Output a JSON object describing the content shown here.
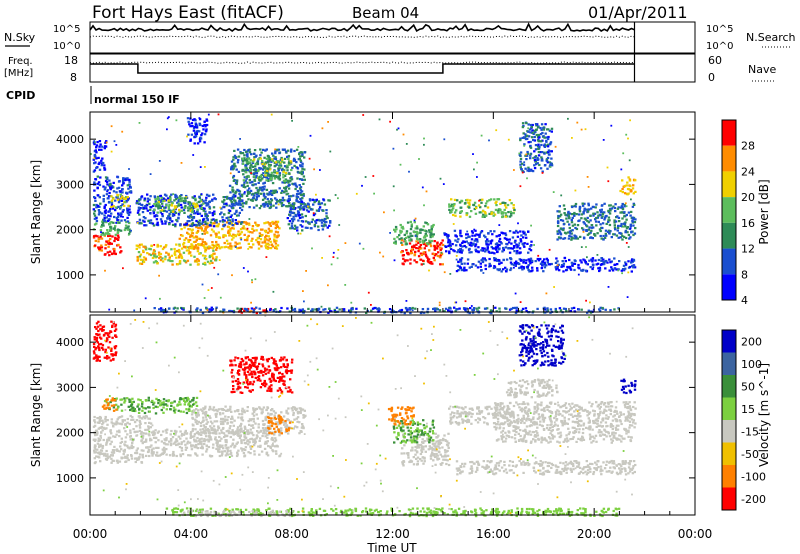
{
  "header": {
    "station": "Fort Hays East (fitACF)",
    "beam": "Beam 04",
    "date": "01/Apr/2011"
  },
  "side_labels": {
    "nsky": "N.Sky",
    "nsearch": "N.Search",
    "freq_line1": "Freq.",
    "freq_line2": "[MHz]",
    "nave": "Nave",
    "cpid": "CPID",
    "cpid_value": "normal 150 IF"
  },
  "chart_data": [
    {
      "type": "line",
      "name": "noise-panel",
      "yticks_left": [
        "10^5",
        "10^0"
      ],
      "yticks_right": [
        "10^5",
        "10^0"
      ],
      "x_range_hours": [
        0,
        24
      ],
      "data_end_hour": 21.6,
      "series": [
        {
          "label": "N.Sky",
          "style": "solid",
          "level": "high"
        },
        {
          "label": "N.Search",
          "style": "dotted",
          "level": "mid"
        }
      ]
    },
    {
      "type": "line",
      "name": "frequency-panel",
      "yticks_left": [
        "18",
        "8"
      ],
      "yticks_right": [
        "60",
        "0"
      ],
      "x_range_hours": [
        0,
        24
      ],
      "data_end_hour": 21.6,
      "freq_steps_mhz": [
        {
          "start_hour": 0.0,
          "end_hour": 1.9,
          "value": 15
        },
        {
          "start_hour": 1.9,
          "end_hour": 14.0,
          "value": 10.5
        },
        {
          "start_hour": 14.0,
          "end_hour": 21.6,
          "value": 15
        }
      ]
    },
    {
      "type": "heatmap",
      "name": "power-panel",
      "ylabel": "Slant Range [km]",
      "ylim_km": [
        180,
        4600
      ],
      "yticks": [
        1000,
        2000,
        3000,
        4000
      ],
      "x_range_hours": [
        0,
        24
      ],
      "colorbar": {
        "label": "Power [dB]",
        "ticks": [
          "28",
          "24",
          "20",
          "16",
          "12",
          "8",
          "4"
        ],
        "colors": [
          "#0000ff",
          "#1a4fd0",
          "#2e8b57",
          "#5cbd5c",
          "#f0d000",
          "#ff8c00",
          "#ff0000"
        ]
      },
      "regions": [
        {
          "t0": 0.1,
          "t1": 1.2,
          "r0": 1450,
          "r1": 1900,
          "level": 28
        },
        {
          "t0": 0.1,
          "t1": 1.6,
          "r0": 1900,
          "r1": 2200,
          "level": 14
        },
        {
          "t0": 0.1,
          "t1": 1.6,
          "r0": 2200,
          "r1": 3200,
          "level": 7
        },
        {
          "t0": 0.8,
          "t1": 1.5,
          "r0": 2500,
          "r1": 2800,
          "level": 18
        },
        {
          "t0": 1.8,
          "t1": 5.0,
          "r0": 1250,
          "r1": 1700,
          "level": 20
        },
        {
          "t0": 3.5,
          "t1": 7.5,
          "r0": 1600,
          "r1": 2200,
          "level": 22
        },
        {
          "t0": 1.8,
          "t1": 6.0,
          "r0": 2100,
          "r1": 2800,
          "level": 8
        },
        {
          "t0": 2.5,
          "t1": 4.5,
          "r0": 2400,
          "r1": 2750,
          "level": 16
        },
        {
          "t0": 5.5,
          "t1": 8.5,
          "r0": 2500,
          "r1": 3800,
          "level": 10
        },
        {
          "t0": 6.0,
          "t1": 8.0,
          "r0": 3100,
          "r1": 3600,
          "level": 15
        },
        {
          "t0": 7.8,
          "t1": 9.5,
          "r0": 2000,
          "r1": 2700,
          "level": 9
        },
        {
          "t0": 12.3,
          "t1": 14.0,
          "r0": 1250,
          "r1": 1800,
          "level": 28
        },
        {
          "t0": 12.0,
          "t1": 13.6,
          "r0": 1700,
          "r1": 2200,
          "level": 14
        },
        {
          "t0": 14.2,
          "t1": 16.8,
          "r0": 2300,
          "r1": 2700,
          "level": 16
        },
        {
          "t0": 14.5,
          "t1": 21.6,
          "r0": 1100,
          "r1": 1400,
          "level": 6
        },
        {
          "t0": 14.0,
          "t1": 17.5,
          "r0": 1500,
          "r1": 2000,
          "level": 5
        },
        {
          "t0": 17.0,
          "t1": 18.3,
          "r0": 3300,
          "r1": 4400,
          "level": 9
        },
        {
          "t0": 18.5,
          "t1": 21.6,
          "r0": 1800,
          "r1": 2600,
          "level": 10
        },
        {
          "t0": 21.0,
          "t1": 21.6,
          "r0": 2800,
          "r1": 3200,
          "level": 22
        },
        {
          "t0": 5.8,
          "t1": 7.2,
          "r0": 180,
          "r1": 280,
          "level": 28
        },
        {
          "t0": 2.5,
          "t1": 21.0,
          "r0": 180,
          "r1": 300,
          "level": 8
        },
        {
          "t0": 3.8,
          "t1": 4.6,
          "r0": 3900,
          "r1": 4500,
          "level": 5
        },
        {
          "t0": 0.1,
          "t1": 0.6,
          "r0": 3300,
          "r1": 4000,
          "level": 4
        }
      ]
    },
    {
      "type": "heatmap",
      "name": "velocity-panel",
      "ylabel": "Slant Range [km]",
      "xlabel": "Time UT",
      "ylim_km": [
        180,
        4600
      ],
      "yticks": [
        1000,
        2000,
        3000,
        4000
      ],
      "x_range_hours": [
        0,
        24
      ],
      "xticks": [
        "00:00",
        "04:00",
        "08:00",
        "12:00",
        "16:00",
        "20:00",
        "00:00"
      ],
      "colorbar": {
        "label": "Velocity [m s^-1]",
        "ticks": [
          "200",
          "100",
          "50",
          "15",
          "-15",
          "-50",
          "-100",
          "-200"
        ],
        "colors": [
          "#0000c8",
          "#3c64a0",
          "#3a8f3a",
          "#7cd040",
          "#c8c8c0",
          "#f0c000",
          "#ff8000",
          "#ff0000"
        ]
      },
      "regions": [
        {
          "t0": 0.1,
          "t1": 2.2,
          "r0": 1350,
          "r1": 2000,
          "level": 0
        },
        {
          "t0": 0.1,
          "t1": 2.4,
          "r0": 2000,
          "r1": 2400,
          "level": 0
        },
        {
          "t0": 0.6,
          "t1": 1.8,
          "r0": 2500,
          "r1": 2800,
          "level": 30
        },
        {
          "t0": 1.8,
          "t1": 4.2,
          "r0": 2450,
          "r1": 2800,
          "level": 30
        },
        {
          "t0": 2.2,
          "t1": 7.5,
          "r0": 1500,
          "r1": 2100,
          "level": 0
        },
        {
          "t0": 4.0,
          "t1": 8.5,
          "r0": 2000,
          "r1": 2600,
          "level": 0
        },
        {
          "t0": 0.1,
          "t1": 1.0,
          "r0": 3600,
          "r1": 4500,
          "level": -180
        },
        {
          "t0": 5.5,
          "t1": 8.0,
          "r0": 2900,
          "r1": 3700,
          "level": -200
        },
        {
          "t0": 7.0,
          "t1": 7.9,
          "r0": 2000,
          "r1": 2400,
          "level": -80
        },
        {
          "t0": 0.4,
          "t1": 1.0,
          "r0": 2500,
          "r1": 2800,
          "level": -60
        },
        {
          "t0": 12.3,
          "t1": 14.2,
          "r0": 1300,
          "r1": 2000,
          "level": 0
        },
        {
          "t0": 12.0,
          "t1": 13.6,
          "r0": 1800,
          "r1": 2300,
          "level": 30
        },
        {
          "t0": 11.8,
          "t1": 12.8,
          "r0": 2200,
          "r1": 2600,
          "level": -70
        },
        {
          "t0": 14.2,
          "t1": 16.8,
          "r0": 2200,
          "r1": 2600,
          "level": 0
        },
        {
          "t0": 14.5,
          "t1": 21.6,
          "r0": 1100,
          "r1": 1400,
          "level": 0
        },
        {
          "t0": 16.0,
          "t1": 21.6,
          "r0": 1800,
          "r1": 2700,
          "level": 0
        },
        {
          "t0": 16.5,
          "t1": 18.5,
          "r0": 2800,
          "r1": 3200,
          "level": 0
        },
        {
          "t0": 17.0,
          "t1": 18.8,
          "r0": 3500,
          "r1": 4400,
          "level": 180
        },
        {
          "t0": 21.0,
          "t1": 21.6,
          "r0": 2900,
          "r1": 3200,
          "level": 200
        },
        {
          "t0": 3.0,
          "t1": 21.0,
          "r0": 180,
          "r1": 350,
          "level": 25
        },
        {
          "t0": 3.5,
          "t1": 8.0,
          "r0": 180,
          "r1": 300,
          "level": 0
        }
      ]
    }
  ]
}
